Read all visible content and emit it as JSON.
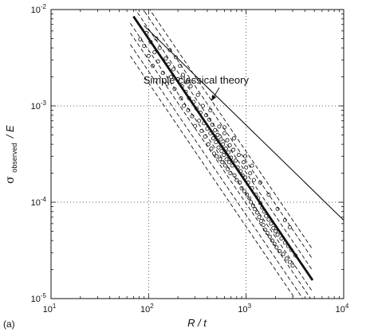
{
  "panel_label": "(a)",
  "chart_data": {
    "type": "scatter",
    "xlabel": "R / t",
    "ylabel_main": "σ",
    "ylabel_sub": "observed",
    "ylabel_tail": "/ E",
    "x_scale": "log",
    "y_scale": "log",
    "xlim": [
      10,
      10000
    ],
    "ylim": [
      1e-05,
      0.01
    ],
    "grid": "dotted",
    "x_ticks": [
      {
        "value": 10,
        "base": "10",
        "exp": "1"
      },
      {
        "value": 100,
        "base": "10",
        "exp": "2"
      },
      {
        "value": 1000,
        "base": "10",
        "exp": "3"
      },
      {
        "value": 10000,
        "base": "10",
        "exp": "4"
      }
    ],
    "y_ticks": [
      {
        "value": 1e-05,
        "base": "10",
        "exp": "-5"
      },
      {
        "value": 0.0001,
        "base": "10",
        "exp": "-4"
      },
      {
        "value": 0.001,
        "base": "10",
        "exp": "-3"
      },
      {
        "value": 0.01,
        "base": "10",
        "exp": "-2"
      }
    ],
    "theory_line": {
      "x": [
        90,
        10000
      ],
      "y": [
        0.0068,
        6.5e-05
      ]
    },
    "fit_line": {
      "x": [
        70,
        4800
      ],
      "y": [
        0.0085,
        1.55e-05
      ]
    },
    "band_slope_x": [
      65,
      4800
    ],
    "band_offsets_decades": [
      0.32,
      0.22,
      0.1,
      -0.12,
      -0.22,
      -0.34,
      -0.46
    ],
    "annotation": {
      "text": "Simple classical theory",
      "text_at": {
        "x": 330,
        "y": 0.0017
      },
      "arrow_to": {
        "x": 440,
        "y": 0.00113
      }
    },
    "points": [
      [
        82,
        0.0049
      ],
      [
        90,
        0.0042
      ],
      [
        95,
        0.0057
      ],
      [
        100,
        0.0033
      ],
      [
        105,
        0.0046
      ],
      [
        110,
        0.0026
      ],
      [
        115,
        0.0036
      ],
      [
        120,
        0.005
      ],
      [
        125,
        0.0029
      ],
      [
        130,
        0.004
      ],
      [
        140,
        0.0022
      ],
      [
        150,
        0.0031
      ],
      [
        155,
        0.0017
      ],
      [
        160,
        0.0027
      ],
      [
        165,
        0.0038
      ],
      [
        170,
        0.002
      ],
      [
        180,
        0.0024
      ],
      [
        185,
        0.0015
      ],
      [
        190,
        0.0032
      ],
      [
        200,
        0.0019
      ],
      [
        210,
        0.0026
      ],
      [
        215,
        0.0012
      ],
      [
        220,
        0.0016
      ],
      [
        225,
        0.0021
      ],
      [
        230,
        0.001
      ],
      [
        240,
        0.0014
      ],
      [
        250,
        0.0018
      ],
      [
        255,
        0.0009
      ],
      [
        260,
        0.0012
      ],
      [
        270,
        0.0016
      ],
      [
        280,
        0.00078
      ],
      [
        290,
        0.0011
      ],
      [
        300,
        0.00062
      ],
      [
        310,
        0.00094
      ],
      [
        320,
        0.0013
      ],
      [
        330,
        0.0007
      ],
      [
        340,
        0.00085
      ],
      [
        350,
        0.00055
      ],
      [
        360,
        0.001
      ],
      [
        370,
        0.00066
      ],
      [
        380,
        0.00048
      ],
      [
        390,
        0.0008
      ],
      [
        400,
        0.00058
      ],
      [
        410,
        0.0004
      ],
      [
        420,
        0.00072
      ],
      [
        430,
        0.00052
      ],
      [
        440,
        0.00036
      ],
      [
        450,
        0.00064
      ],
      [
        460,
        0.00046
      ],
      [
        470,
        0.00032
      ],
      [
        480,
        0.00056
      ],
      [
        490,
        0.00042
      ],
      [
        500,
        0.0003
      ],
      [
        510,
        0.0005
      ],
      [
        520,
        0.00037
      ],
      [
        530,
        0.00061
      ],
      [
        540,
        0.00028
      ],
      [
        550,
        0.00045
      ],
      [
        560,
        0.00034
      ],
      [
        570,
        0.00026
      ],
      [
        580,
        0.0004
      ],
      [
        590,
        0.00031
      ],
      [
        600,
        0.00052
      ],
      [
        610,
        0.00024
      ],
      [
        620,
        0.00036
      ],
      [
        630,
        0.00028
      ],
      [
        640,
        0.00044
      ],
      [
        650,
        0.00022
      ],
      [
        660,
        0.00033
      ],
      [
        670,
        0.00026
      ],
      [
        680,
        0.00039
      ],
      [
        690,
        0.0002
      ],
      [
        700,
        0.00029
      ],
      [
        720,
        0.00024
      ],
      [
        740,
        0.00035
      ],
      [
        760,
        0.00019
      ],
      [
        780,
        0.00027
      ],
      [
        800,
        0.00017
      ],
      [
        820,
        0.00023
      ],
      [
        840,
        0.00031
      ],
      [
        860,
        0.00016
      ],
      [
        880,
        0.00021
      ],
      [
        900,
        0.00014
      ],
      [
        920,
        0.00019
      ],
      [
        940,
        0.00026
      ],
      [
        960,
        0.00013
      ],
      [
        980,
        0.00018
      ],
      [
        1000,
        0.00023
      ],
      [
        1020,
        0.00012
      ],
      [
        1050,
        0.00016
      ],
      [
        1080,
        0.00011
      ],
      [
        1100,
        0.0002
      ],
      [
        1120,
        0.0001
      ],
      [
        1150,
        0.00014
      ],
      [
        1180,
        9.2e-05
      ],
      [
        1200,
        0.00017
      ],
      [
        1230,
        8.5e-05
      ],
      [
        1260,
        0.00012
      ],
      [
        1300,
        7.8e-05
      ],
      [
        1330,
        0.00011
      ],
      [
        1360,
        7e-05
      ],
      [
        1400,
        9.8e-05
      ],
      [
        1430,
        6.4e-05
      ],
      [
        1460,
        8.8e-05
      ],
      [
        1500,
        5.8e-05
      ],
      [
        1530,
        8e-05
      ],
      [
        1560,
        5.2e-05
      ],
      [
        1600,
        7.2e-05
      ],
      [
        1650,
        4.8e-05
      ],
      [
        1700,
        6.6e-05
      ],
      [
        1750,
        4.4e-05
      ],
      [
        1800,
        6e-05
      ],
      [
        1850,
        4e-05
      ],
      [
        1900,
        5.4e-05
      ],
      [
        1950,
        3.7e-05
      ],
      [
        2000,
        5e-05
      ],
      [
        2050,
        3.4e-05
      ],
      [
        2100,
        4.6e-05
      ],
      [
        2200,
        3.1e-05
      ],
      [
        2300,
        4.2e-05
      ],
      [
        2400,
        2.9e-05
      ],
      [
        2500,
        3.8e-05
      ],
      [
        2600,
        2.6e-05
      ],
      [
        2700,
        3.5e-05
      ],
      [
        2800,
        2.4e-05
      ],
      [
        2900,
        3.2e-05
      ],
      [
        3000,
        2.2e-05
      ],
      [
        3200,
        2.8e-05
      ],
      [
        1150,
        0.00024
      ],
      [
        980,
        0.0003
      ],
      [
        750,
        0.00046
      ],
      [
        600,
        0.0006
      ],
      [
        430,
        0.0009
      ],
      [
        1400,
        0.00016
      ],
      [
        1700,
        0.00012
      ],
      [
        2100,
        8.5e-05
      ],
      [
        2500,
        6.5e-05
      ],
      [
        2800,
        5.5e-05
      ]
    ]
  }
}
